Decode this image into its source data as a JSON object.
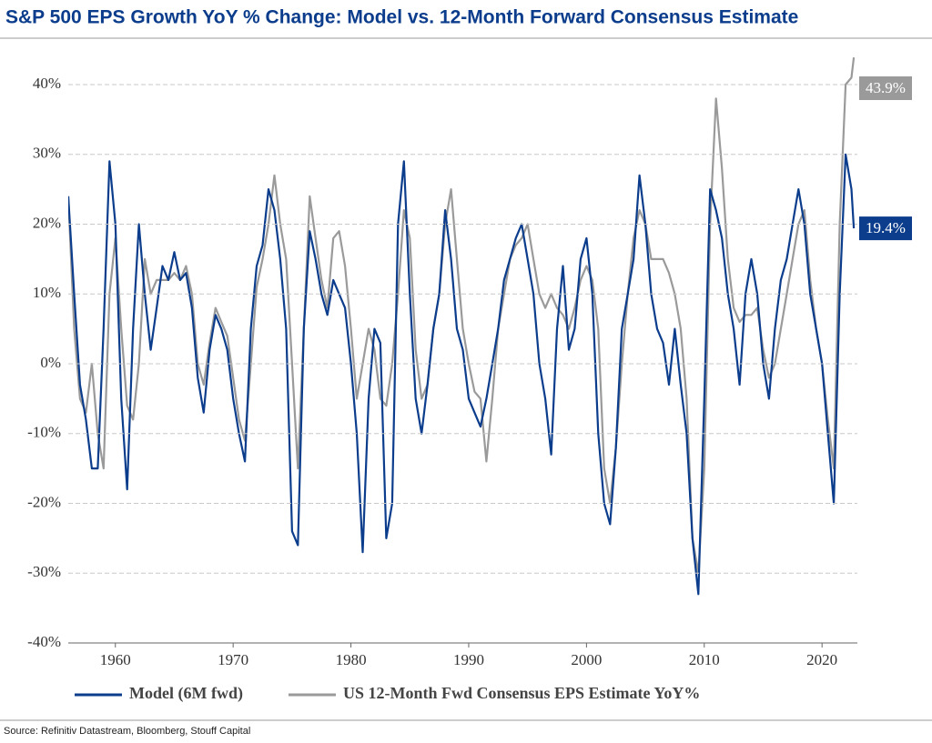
{
  "chart_data": {
    "type": "line",
    "title": "S&P 500 EPS Growth YoY % Change: Model vs. 12-Month Forward Consensus Estimate",
    "source": "Source: Refinitiv Datastream, Bloomberg, Stouff Capital",
    "x": [
      1956,
      1956.5,
      1957,
      1957.5,
      1958,
      1958.5,
      1959,
      1959.5,
      1960,
      1960.5,
      1961,
      1961.5,
      1962,
      1962.5,
      1963,
      1963.5,
      1964,
      1964.5,
      1965,
      1965.5,
      1966,
      1966.5,
      1967,
      1967.5,
      1968,
      1968.5,
      1969,
      1969.5,
      1970,
      1970.5,
      1971,
      1971.5,
      1972,
      1972.5,
      1973,
      1973.5,
      1974,
      1974.5,
      1975,
      1975.5,
      1976,
      1976.5,
      1977,
      1977.5,
      1978,
      1978.5,
      1979,
      1979.5,
      1980,
      1980.5,
      1981,
      1981.5,
      1982,
      1982.5,
      1983,
      1983.5,
      1984,
      1984.5,
      1985,
      1985.5,
      1986,
      1986.5,
      1987,
      1987.5,
      1988,
      1988.5,
      1989,
      1989.5,
      1990,
      1990.5,
      1991,
      1991.5,
      1992,
      1992.5,
      1993,
      1993.5,
      1994,
      1994.5,
      1995,
      1995.5,
      1996,
      1996.5,
      1997,
      1997.5,
      1998,
      1998.5,
      1999,
      1999.5,
      2000,
      2000.5,
      2001,
      2001.5,
      2002,
      2002.5,
      2003,
      2003.5,
      2004,
      2004.5,
      2005,
      2005.5,
      2006,
      2006.5,
      2007,
      2007.5,
      2008,
      2008.5,
      2009,
      2009.5,
      2010,
      2010.5,
      2011,
      2011.5,
      2012,
      2012.5,
      2013,
      2013.5,
      2014,
      2014.5,
      2015,
      2015.5,
      2016,
      2016.5,
      2017,
      2017.5,
      2018,
      2018.5,
      2019,
      2019.5,
      2020,
      2020.5,
      2021,
      2021.5,
      2022,
      2022.5,
      2022.7
    ],
    "series": [
      {
        "name": "Model (6M fwd)",
        "color": "#0b3d8c",
        "end_label": "19.4%",
        "values": [
          24,
          10,
          -3,
          -8,
          -15,
          -15,
          5,
          29,
          20,
          -5,
          -18,
          5,
          20,
          10,
          2,
          8,
          14,
          12,
          16,
          12,
          13,
          8,
          -2,
          -7,
          2,
          7,
          5,
          2,
          -5,
          -10,
          -14,
          5,
          14,
          17,
          25,
          22,
          15,
          5,
          -24,
          -26,
          5,
          19,
          15,
          10,
          7,
          12,
          10,
          8,
          0,
          -10,
          -27,
          -5,
          5,
          3,
          -25,
          -20,
          20,
          29,
          10,
          -5,
          -10,
          -3,
          5,
          10,
          22,
          15,
          5,
          2,
          -5,
          -7,
          -9,
          -5,
          0,
          5,
          12,
          15,
          18,
          20,
          15,
          10,
          0,
          -5,
          -13,
          5,
          14,
          2,
          5,
          15,
          18,
          10,
          -10,
          -20,
          -23,
          -12,
          5,
          10,
          15,
          27,
          20,
          10,
          5,
          3,
          -3,
          5,
          -3,
          -10,
          -25,
          -33,
          -5,
          25,
          22,
          18,
          10,
          5,
          -3,
          10,
          15,
          10,
          0,
          -5,
          5,
          12,
          15,
          20,
          25,
          20,
          10,
          5,
          0,
          -10,
          -20,
          10,
          30,
          25,
          19.4
        ]
      },
      {
        "name": "US 12-Month Fwd Consensus EPS Estimate YoY%",
        "color": "#9a9a9a",
        "end_label": "43.9%",
        "values": [
          24,
          5,
          -5,
          -7,
          0,
          -10,
          -15,
          10,
          18,
          5,
          -6,
          -8,
          0,
          15,
          10,
          12,
          12,
          12,
          13,
          12,
          14,
          10,
          0,
          -3,
          3,
          8,
          6,
          4,
          -2,
          -8,
          -11,
          0,
          11,
          15,
          20,
          27,
          20,
          15,
          0,
          -15,
          5,
          24,
          18,
          12,
          8,
          18,
          19,
          14,
          5,
          -5,
          0,
          5,
          2,
          -5,
          -6,
          0,
          10,
          22,
          18,
          2,
          -5,
          -3,
          5,
          10,
          20,
          25,
          15,
          5,
          0,
          -4,
          -5,
          -14,
          -5,
          5,
          10,
          15,
          17,
          18,
          20,
          15,
          10,
          8,
          10,
          8,
          7,
          5,
          8,
          12,
          14,
          12,
          5,
          -15,
          -20,
          -12,
          0,
          10,
          18,
          22,
          20,
          15,
          15,
          15,
          13,
          10,
          5,
          -5,
          -25,
          -30,
          -15,
          20,
          38,
          28,
          15,
          8,
          6,
          7,
          7,
          8,
          2,
          -2,
          0,
          5,
          10,
          15,
          20,
          22,
          12,
          5,
          0,
          -8,
          -15,
          20,
          40,
          41,
          43.9
        ]
      }
    ],
    "xlim": [
      1956,
      2023
    ],
    "xticks": [
      1960,
      1970,
      1980,
      1990,
      2000,
      2010,
      2020
    ],
    "ylim": [
      -40,
      40
    ],
    "yticks": [
      {
        "value": -40,
        "label": "-40%"
      },
      {
        "value": -30,
        "label": "-30%"
      },
      {
        "value": -20,
        "label": "-20%"
      },
      {
        "value": -10,
        "label": "-10%"
      },
      {
        "value": 0,
        "label": "0%"
      },
      {
        "value": 10,
        "label": "10%"
      },
      {
        "value": 20,
        "label": "20%"
      },
      {
        "value": 30,
        "label": "30%"
      },
      {
        "value": 40,
        "label": "40%"
      }
    ],
    "grid": true,
    "legend": "bottom"
  }
}
